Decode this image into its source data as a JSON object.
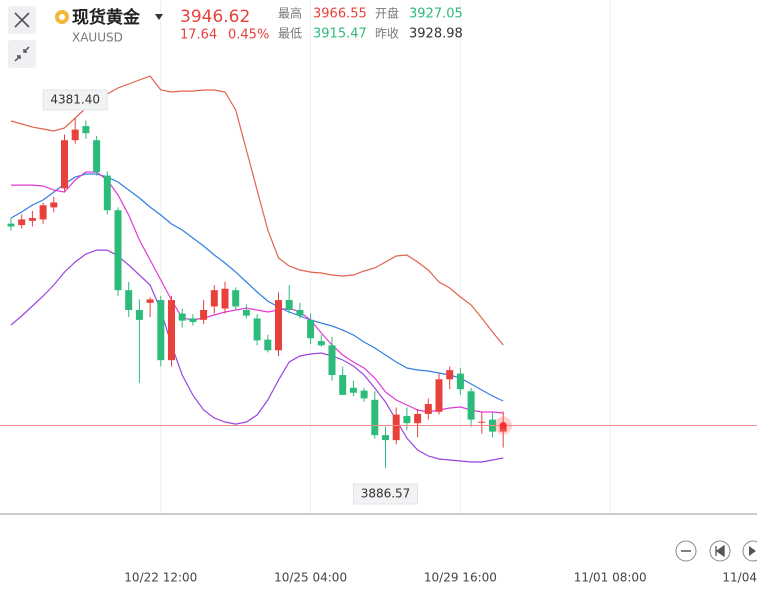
{
  "quote": {
    "title": "现货黄金",
    "symbol": "XAUUSD",
    "price": "3946.62",
    "change": "17.64",
    "change_pct": "0.45%",
    "high_label": "最高",
    "high": "3966.55",
    "open_label": "开盘",
    "open": "3927.05",
    "low_label": "最低",
    "low": "3915.47",
    "prev_label": "昨收",
    "prev": "3928.98"
  },
  "chart_data": {
    "type": "candlestick",
    "categories": [
      null,
      null,
      null,
      null,
      null,
      null,
      null,
      null,
      null,
      null,
      null,
      null,
      null,
      null,
      "10/22 12:00",
      null,
      null,
      null,
      null,
      null,
      null,
      null,
      null,
      null,
      null,
      null,
      null,
      null,
      "10/25 04:00",
      null,
      null,
      null,
      null,
      null,
      null,
      null,
      null,
      null,
      null,
      null,
      null,
      null,
      "10/29 16:00",
      null,
      null,
      null,
      null,
      null,
      null,
      null,
      null,
      null,
      null,
      null,
      null,
      null,
      "11/01 08:00",
      null,
      null,
      null,
      null,
      null,
      null,
      null,
      null,
      null,
      null,
      null,
      null,
      null,
      "11/04"
    ],
    "open": [
      4232,
      4230,
      4236,
      4238,
      4255,
      4282,
      4350,
      4370,
      4350,
      4300,
      4251,
      4138,
      4110,
      4120,
      4124,
      4039,
      4105,
      4098,
      4096,
      4115,
      4112,
      4138,
      4110,
      4098,
      4068,
      4053,
      4124,
      4110,
      4096,
      4066,
      4060,
      4018,
      4000,
      3996,
      3983,
      3933,
      3926,
      3960,
      3950,
      3963,
      3966,
      4012,
      4020,
      3995,
      3952,
      3955,
      3938,
      null,
      null,
      null,
      null,
      null,
      null,
      null,
      null,
      null,
      null,
      null,
      null,
      null,
      null,
      null,
      null,
      null,
      null,
      null,
      null,
      null,
      null,
      null,
      null
    ],
    "high": [
      4240,
      4245,
      4250,
      4262,
      4270,
      4358,
      4381.4,
      4378,
      4356,
      4306,
      4255,
      4150,
      4125,
      4128,
      4130,
      4130,
      4112,
      4104,
      4124,
      4145,
      4150,
      4142,
      4118,
      4104,
      4075,
      4135,
      4145,
      4120,
      4105,
      4075,
      4072,
      4030,
      4010,
      4000,
      3995,
      3945,
      3972,
      3972,
      3970,
      3985,
      4020,
      4030,
      4028,
      4000,
      3966,
      3965,
      3966.55,
      null,
      null,
      null,
      null,
      null,
      null,
      null,
      null,
      null,
      null,
      null,
      null,
      null,
      null,
      null,
      null,
      null,
      null,
      null,
      null,
      null,
      null,
      null,
      null
    ],
    "low": [
      4222,
      4225,
      4228,
      4232,
      4248,
      4278,
      4345,
      4352,
      4300,
      4245,
      4130,
      4100,
      4006.7,
      4100,
      4030,
      4030,
      4085,
      4088,
      4090,
      4105,
      4105,
      4110,
      4098,
      4060,
      4050,
      4045,
      4105,
      4098,
      4062,
      4058,
      4010,
      3990,
      3988,
      3980,
      3928,
      3886.57,
      3920,
      3940,
      3930,
      3955,
      3962,
      3998,
      3990,
      3945,
      3935,
      3930,
      3915.47,
      null,
      null,
      null,
      null,
      null,
      null,
      null,
      null,
      null,
      null,
      null,
      null,
      null,
      null,
      null,
      null,
      null,
      null,
      null,
      null,
      null,
      null,
      null,
      null
    ],
    "close": [
      4228,
      4238,
      4240,
      4258,
      4262,
      4350,
      4365,
      4360,
      4305,
      4251,
      4138,
      4110,
      4096,
      4125,
      4039,
      4124,
      4095,
      4093,
      4110,
      4138,
      4140,
      4115,
      4102,
      4067,
      4053,
      4124,
      4110,
      4102,
      4070,
      4060,
      4018,
      3990,
      3993,
      3985,
      3933,
      3926,
      3962,
      3950,
      3963,
      3977,
      4012,
      4025,
      3998,
      3955,
      3952,
      3938,
      3946.62,
      null,
      null,
      null,
      null,
      null,
      null,
      null,
      null,
      null,
      null,
      null,
      null,
      null,
      null,
      null,
      null,
      null,
      null,
      null,
      null,
      null,
      null,
      null,
      null
    ],
    "up_color": "#e8413c",
    "down_color": "#2dbb7b",
    "lines": [
      {
        "color": "#e0644c",
        "values": [
          4377.1,
          4372.9,
          4368.6,
          4365.8,
          4363.0,
          4367.2,
          4381.4,
          4395.5,
          4406.8,
          4415.3,
          4423.8,
          4429.4,
          4435.1,
          4440.7,
          4421.0,
          4418.1,
          4419.5,
          4419.5,
          4421.0,
          4421.0,
          4418.1,
          4392.7,
          4336.1,
          4279.6,
          4223.0,
          4183.4,
          4172.1,
          4166.5,
          4163.6,
          4162.2,
          4159.4,
          4158.0,
          4159.4,
          4165.1,
          4169.3,
          4177.8,
          4186.3,
          4187.7,
          4177.8,
          4166.5,
          4149.5,
          4141.0,
          4128.3,
          4117.0,
          4098.6,
          4078.8,
          4060.4,
          null,
          null,
          null,
          null,
          null,
          null,
          null,
          null,
          null,
          null,
          null,
          null,
          null,
          null,
          null,
          null,
          null,
          null,
          null,
          null,
          null,
          null,
          null,
          null
        ]
      },
      {
        "color": "#2f7fe0",
        "values": [
          4240.0,
          4248.5,
          4258.4,
          4265.5,
          4276.7,
          4288.1,
          4297.9,
          4302.2,
          4302.2,
          4297.9,
          4290.9,
          4279.6,
          4268.3,
          4255.5,
          4244.2,
          4231.5,
          4223.0,
          4211.7,
          4200.4,
          4187.7,
          4176.4,
          4163.6,
          4149.5,
          4135.4,
          4122.6,
          4114.2,
          4107.1,
          4101.4,
          4095.8,
          4091.5,
          4087.3,
          4081.6,
          4074.6,
          4064.7,
          4056.2,
          4046.3,
          4036.4,
          4028.0,
          4025.1,
          4023.7,
          4020.9,
          4018.0,
          4013.8,
          4005.3,
          3996.8,
          3988.3,
          3981.3,
          null,
          null,
          null,
          null,
          null,
          null,
          null,
          null,
          null,
          null,
          null,
          null,
          null,
          null,
          null,
          null,
          null,
          null,
          null,
          null,
          null,
          null,
          null,
          null
        ]
      },
      {
        "color": "#9b45e0",
        "values": [
          4088.7,
          4101.4,
          4115.6,
          4129.7,
          4145.3,
          4163.6,
          4177.8,
          4189.1,
          4194.7,
          4194.7,
          4186.3,
          4173.5,
          4159.4,
          4145.3,
          4109.9,
          4060.4,
          4018.0,
          3989.7,
          3968.5,
          3957.2,
          3951.6,
          3948.7,
          3951.6,
          3961.5,
          3982.7,
          4010.9,
          4036.4,
          4044.9,
          4047.7,
          4049.1,
          4044.9,
          4039.2,
          4030.8,
          4018.0,
          3999.6,
          3979.9,
          3954.4,
          3928.9,
          3912.0,
          3903.5,
          3899.3,
          3897.9,
          3896.4,
          3895.0,
          3895.0,
          3897.9,
          3900.7,
          null,
          null,
          null,
          null,
          null,
          null,
          null,
          null,
          null,
          null,
          null,
          null,
          null,
          null,
          null,
          null,
          null,
          null,
          null,
          null,
          null,
          null,
          null,
          null
        ]
      },
      {
        "color": "#e23ad6",
        "values": [
          4286.6,
          4286.6,
          4286.6,
          4285.2,
          4279.6,
          4276.7,
          4293.7,
          4305.0,
          4305.0,
          4293.7,
          4272.5,
          4244.2,
          4208.9,
          4180.6,
          4152.3,
          4124.1,
          4098.6,
          4095.8,
          4098.6,
          4102.9,
          4107.1,
          4109.9,
          4112.7,
          4109.9,
          4107.1,
          4109.9,
          4112.7,
          4107.1,
          4095.8,
          4077.4,
          4060.4,
          4046.3,
          4036.4,
          4028.0,
          4013.8,
          3994.0,
          3982.7,
          3975.6,
          3968.5,
          3965.7,
          3968.5,
          3971.4,
          3972.8,
          3968.5,
          3965.7,
          3965.7,
          3964.3,
          null,
          null,
          null,
          null,
          null,
          null,
          null,
          null,
          null,
          null,
          null,
          null,
          null,
          null,
          null,
          null,
          null,
          null,
          null,
          null,
          null,
          null,
          null,
          null
        ]
      }
    ],
    "annotations": [
      {
        "value": 4381.4,
        "label": "4381.40"
      },
      {
        "value": 3886.57,
        "label": "3886.57"
      }
    ]
  }
}
